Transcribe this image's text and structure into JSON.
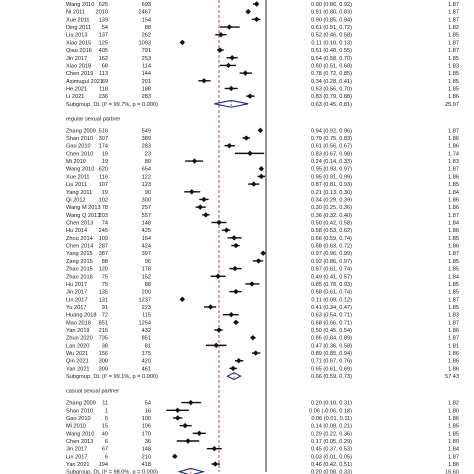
{
  "chart_data": {
    "type": "forest",
    "effect_scale": "linear",
    "xlim": [
      0,
      1.5
    ],
    "null_line": 1,
    "groups": [
      {
        "label": "",
        "studies": [
          {
            "study": "Wang 2010",
            "n1": "625",
            "n2": "693",
            "effect": 0.9,
            "lo": 0.86,
            "hi": 0.92,
            "ci_text": "0.90 (0.86, 0.92)",
            "weight": "1.87"
          },
          {
            "study": "Ni 2011",
            "n1": "2010",
            "n2": "2467",
            "effect": 0.81,
            "lo": 0.8,
            "hi": 0.83,
            "ci_text": "0.81 (0.80, 0.83)",
            "weight": "1.87"
          },
          {
            "study": "Xue 2011",
            "n1": "139",
            "n2": "154",
            "effect": 0.9,
            "lo": 0.85,
            "hi": 0.94,
            "ci_text": "0.90 (0.85, 0.94)",
            "weight": "1.87"
          },
          {
            "study": "Ding 2011",
            "n1": "54",
            "n2": "88",
            "effect": 0.61,
            "lo": 0.51,
            "hi": 0.72,
            "ci_text": "0.61 (0.51, 0.72)",
            "weight": "1.82"
          },
          {
            "study": "Liu 2013",
            "n1": "137",
            "n2": "262",
            "effect": 0.52,
            "lo": 0.46,
            "hi": 0.58,
            "ci_text": "0.52 (0.46, 0.58)",
            "weight": "1.85"
          },
          {
            "study": "Xiao 2015",
            "n1": "125",
            "n2": "1093",
            "effect": 0.11,
            "lo": 0.1,
            "hi": 0.13,
            "ci_text": "0.11 (0.10, 0.13)",
            "weight": "1.87"
          },
          {
            "study": "Qiao 2016",
            "n1": "405",
            "n2": "791",
            "effect": 0.51,
            "lo": 0.48,
            "hi": 0.55,
            "ci_text": "0.51 (0.48, 0.55)",
            "weight": "1.87"
          },
          {
            "study": "Jin 2017",
            "n1": "162",
            "n2": "253",
            "effect": 0.64,
            "lo": 0.58,
            "hi": 0.7,
            "ci_text": "0.64 (0.58, 0.70)",
            "weight": "1.85"
          },
          {
            "study": "Xiao 2018",
            "n1": "68",
            "n2": "114",
            "effect": 0.6,
            "lo": 0.51,
            "hi": 0.68,
            "ci_text": "0.60 (0.51, 0.68)",
            "weight": "1.83"
          },
          {
            "study": "Chen 2019",
            "n1": "113",
            "n2": "144",
            "effect": 0.78,
            "lo": 0.72,
            "hi": 0.85,
            "ci_text": "0.78 (0.72, 0.85)",
            "weight": "1.85"
          },
          {
            "study": "Asimugul 2021",
            "n1": "69",
            "n2": "201",
            "effect": 0.34,
            "lo": 0.28,
            "hi": 0.41,
            "ci_text": "0.34 (0.28, 0.41)",
            "weight": "1.85"
          },
          {
            "study": "He 2021",
            "n1": "118",
            "n2": "188",
            "effect": 0.63,
            "lo": 0.56,
            "hi": 0.7,
            "ci_text": "0.63 (0.56, 0.70)",
            "weight": "1.85"
          },
          {
            "study": "Li 2021",
            "n1": "236",
            "n2": "283",
            "effect": 0.83,
            "lo": 0.79,
            "hi": 0.88,
            "ci_text": "0.83 (0.79, 0.88)",
            "weight": "1.86"
          }
        ],
        "subtotal": {
          "label": "Subgroup, DL (I² = 99.7%, p = 0.000)",
          "effect": 0.63,
          "lo": 0.45,
          "hi": 0.81,
          "ci_text": "0.63 (0.45, 0.81)",
          "weight": "25.97"
        }
      },
      {
        "label": "regular sexual partner",
        "studies": [
          {
            "study": "Zhang 2009",
            "n1": "516",
            "n2": "549",
            "effect": 0.94,
            "lo": 0.92,
            "hi": 0.96,
            "ci_text": "0.94 (0.92, 0.96)",
            "weight": "1.87"
          },
          {
            "study": "Shan 2010",
            "n1": "307",
            "n2": "389",
            "effect": 0.79,
            "lo": 0.75,
            "hi": 0.83,
            "ci_text": "0.79 (0.75, 0.83)",
            "weight": "1.86"
          },
          {
            "study": "Gao 2010",
            "n1": "174",
            "n2": "283",
            "effect": 0.61,
            "lo": 0.56,
            "hi": 0.67,
            "ci_text": "0.61 (0.56, 0.67)",
            "weight": "1.86"
          },
          {
            "study": "Chen 2010",
            "n1": "19",
            "n2": "23",
            "effect": 0.83,
            "lo": 0.67,
            "hi": 0.98,
            "ci_text": "0.83 (0.67, 0.98)",
            "weight": "1.74"
          },
          {
            "study": "Mi 2010",
            "n1": "19",
            "n2": "80",
            "effect": 0.24,
            "lo": 0.14,
            "hi": 0.33,
            "ci_text": "0.24 (0.14, 0.33)",
            "weight": "1.83"
          },
          {
            "study": "Wang 2010",
            "n1": "620",
            "n2": "654",
            "effect": 0.95,
            "lo": 0.93,
            "hi": 0.97,
            "ci_text": "0.95 (0.93, 0.97)",
            "weight": "1.87"
          },
          {
            "study": "Xue 2011",
            "n1": "116",
            "n2": "122",
            "effect": 0.95,
            "lo": 0.91,
            "hi": 0.99,
            "ci_text": "0.95 (0.91, 0.99)",
            "weight": "1.86"
          },
          {
            "study": "Liu 2011",
            "n1": "107",
            "n2": "123",
            "effect": 0.87,
            "lo": 0.81,
            "hi": 0.93,
            "ci_text": "0.87 (0.81, 0.93)",
            "weight": "1.85"
          },
          {
            "study": "Yang 2011",
            "n1": "19",
            "n2": "90",
            "effect": 0.21,
            "lo": 0.13,
            "hi": 0.3,
            "ci_text": "0.21 (0.13, 0.30)",
            "weight": "1.84"
          },
          {
            "study": "Qi 2012",
            "n1": "102",
            "n2": "300",
            "effect": 0.34,
            "lo": 0.29,
            "hi": 0.39,
            "ci_text": "0.34 (0.29, 0.39)",
            "weight": "1.86"
          },
          {
            "study": "Wang M 2013",
            "n1": "78",
            "n2": "257",
            "effect": 0.3,
            "lo": 0.25,
            "hi": 0.36,
            "ci_text": "0.30 (0.25, 0.36)",
            "weight": "1.86"
          },
          {
            "study": "Wang Q 2013",
            "n1": "203",
            "n2": "557",
            "effect": 0.36,
            "lo": 0.32,
            "hi": 0.4,
            "ci_text": "0.36 (0.32, 0.40)",
            "weight": "1.87"
          },
          {
            "study": "Chen 2013",
            "n1": "74",
            "n2": "148",
            "effect": 0.5,
            "lo": 0.42,
            "hi": 0.58,
            "ci_text": "0.50 (0.42, 0.58)",
            "weight": "1.84"
          },
          {
            "study": "Hu 2014",
            "n1": "245",
            "n2": "425",
            "effect": 0.58,
            "lo": 0.53,
            "hi": 0.62,
            "ci_text": "0.58 (0.53, 0.62)",
            "weight": "1.86"
          },
          {
            "study": "Zhou 2014",
            "n1": "109",
            "n2": "164",
            "effect": 0.66,
            "lo": 0.59,
            "hi": 0.74,
            "ci_text": "0.66 (0.59, 0.74)",
            "weight": "1.85"
          },
          {
            "study": "Chen 2014",
            "n1": "287",
            "n2": "424",
            "effect": 0.68,
            "lo": 0.63,
            "hi": 0.72,
            "ci_text": "0.68 (0.63, 0.72)",
            "weight": "1.86"
          },
          {
            "study": "Yang 2015",
            "n1": "387",
            "n2": "397",
            "effect": 0.97,
            "lo": 0.96,
            "hi": 0.99,
            "ci_text": "0.97 (0.96, 0.99)",
            "weight": "1.87"
          },
          {
            "study": "Zang 2015",
            "n1": "88",
            "n2": "96",
            "effect": 0.92,
            "lo": 0.86,
            "hi": 0.97,
            "ci_text": "0.92 (0.86, 0.97)",
            "weight": "1.85"
          },
          {
            "study": "Zhao 2015",
            "n1": "120",
            "n2": "178",
            "effect": 0.67,
            "lo": 0.61,
            "hi": 0.74,
            "ci_text": "0.67 (0.61, 0.74)",
            "weight": "1.85"
          },
          {
            "study": "Zhao 2016",
            "n1": "75",
            "n2": "152",
            "effect": 0.49,
            "lo": 0.41,
            "hi": 0.57,
            "ci_text": "0.49 (0.41, 0.57)",
            "weight": "1.84"
          },
          {
            "study": "Hu 2017",
            "n1": "75",
            "n2": "88",
            "effect": 0.85,
            "lo": 0.78,
            "hi": 0.93,
            "ci_text": "0.85 (0.78, 0.93)",
            "weight": "1.85"
          },
          {
            "study": "Jin 2017",
            "n1": "135",
            "n2": "200",
            "effect": 0.68,
            "lo": 0.61,
            "hi": 0.74,
            "ci_text": "0.68 (0.61, 0.74)",
            "weight": "1.85"
          },
          {
            "study": "Lin 2017",
            "n1": "131",
            "n2": "1237",
            "effect": 0.11,
            "lo": 0.09,
            "hi": 0.12,
            "ci_text": "0.11 (0.09, 0.12)",
            "weight": "1.87"
          },
          {
            "study": "Yu 2017",
            "n1": "91",
            "n2": "223",
            "effect": 0.41,
            "lo": 0.34,
            "hi": 0.47,
            "ci_text": "0.41 (0.34, 0.47)",
            "weight": "1.85"
          },
          {
            "study": "Huang 2018",
            "n1": "72",
            "n2": "115",
            "effect": 0.63,
            "lo": 0.54,
            "hi": 0.71,
            "ci_text": "0.63 (0.54, 0.71)",
            "weight": "1.83"
          },
          {
            "study": "Mao 2018",
            "n1": "851",
            "n2": "1254",
            "effect": 0.68,
            "lo": 0.66,
            "hi": 0.71,
            "ci_text": "0.68 (0.66, 0.71)",
            "weight": "1.87"
          },
          {
            "study": "Yan 2019",
            "n1": "215",
            "n2": "432",
            "effect": 0.5,
            "lo": 0.45,
            "hi": 0.54,
            "ci_text": "0.50 (0.45, 0.54)",
            "weight": "1.86"
          },
          {
            "study": "Zhuo 2020",
            "n1": "735",
            "n2": "851",
            "effect": 0.86,
            "lo": 0.84,
            "hi": 0.89,
            "ci_text": "0.86 (0.84, 0.89)",
            "weight": "1.87"
          },
          {
            "study": "Lan 2020",
            "n1": "38",
            "n2": "81",
            "effect": 0.47,
            "lo": 0.36,
            "hi": 0.58,
            "ci_text": "0.47 (0.36, 0.58)",
            "weight": "1.81"
          },
          {
            "study": "Wu 2021",
            "n1": "156",
            "n2": "175",
            "effect": 0.89,
            "lo": 0.85,
            "hi": 0.94,
            "ci_text": "0.89 (0.85, 0.94)",
            "weight": "1.86"
          },
          {
            "study": "Qin 2021",
            "n1": "300",
            "n2": "420",
            "effect": 0.71,
            "lo": 0.67,
            "hi": 0.76,
            "ci_text": "0.71 (0.67, 0.76)",
            "weight": "1.86"
          },
          {
            "study": "Yan 2021",
            "n1": "300",
            "n2": "461",
            "effect": 0.65,
            "lo": 0.61,
            "hi": 0.69,
            "ci_text": "0.65 (0.61, 0.69)",
            "weight": "1.86"
          }
        ],
        "subtotal": {
          "label": "Subgroup, DL (I² = 99.1%, p = 0.000)",
          "effect": 0.66,
          "lo": 0.59,
          "hi": 0.73,
          "ci_text": "0.66 (0.59, 0.73)",
          "weight": "57.43"
        }
      },
      {
        "label": "casual sexual partner",
        "studies": [
          {
            "study": "Zhang 2009",
            "n1": "11",
            "n2": "54",
            "effect": 0.2,
            "lo": 0.1,
            "hi": 0.31,
            "ci_text": "0.20 (0.10, 0.31)",
            "weight": "1.82"
          },
          {
            "study": "Shan 2010",
            "n1": "1",
            "n2": "16",
            "effect": 0.06,
            "lo": -0.06,
            "hi": 0.18,
            "ci_text": "0.06 (-0.06, 0.18)",
            "weight": "1.80"
          },
          {
            "study": "Gao 2010",
            "n1": "6",
            "n2": "100",
            "effect": 0.06,
            "lo": 0.01,
            "hi": 0.11,
            "ci_text": "0.06 (0.01, 0.11)",
            "weight": "1.86"
          },
          {
            "study": "Mi 2010",
            "n1": "15",
            "n2": "106",
            "effect": 0.14,
            "lo": 0.08,
            "hi": 0.21,
            "ci_text": "0.14 (0.08, 0.21)",
            "weight": "1.85"
          },
          {
            "study": "Wang 2010",
            "n1": "49",
            "n2": "170",
            "effect": 0.29,
            "lo": 0.22,
            "hi": 0.36,
            "ci_text": "0.29 (0.22, 0.36)",
            "weight": "1.85"
          },
          {
            "study": "Chen 2013",
            "n1": "6",
            "n2": "36",
            "effect": 0.17,
            "lo": 0.05,
            "hi": 0.29,
            "ci_text": "0.17 (0.05, 0.29)",
            "weight": "1.80"
          },
          {
            "study": "Jin 2017",
            "n1": "67",
            "n2": "148",
            "effect": 0.45,
            "lo": 0.37,
            "hi": 0.53,
            "ci_text": "0.45 (0.37, 0.53)",
            "weight": "1.84"
          },
          {
            "study": "Lin 2017",
            "n1": "6",
            "n2": "210",
            "effect": 0.03,
            "lo": 0.01,
            "hi": 0.05,
            "ci_text": "0.03 (0.01, 0.05)",
            "weight": "1.87"
          },
          {
            "study": "Yan 2021",
            "n1": "194",
            "n2": "418",
            "effect": 0.46,
            "lo": 0.42,
            "hi": 0.51,
            "ci_text": "0.46 (0.42, 0.51)",
            "weight": "1.86"
          }
        ],
        "subtotal": {
          "label": "Subgroup, DL (I² = 98.0%, p = 0.000)",
          "effect": 0.2,
          "lo": 0.08,
          "hi": 0.33,
          "ci_text": "0.20 (0.08, 0.33)",
          "weight": "16.60"
        }
      }
    ]
  }
}
